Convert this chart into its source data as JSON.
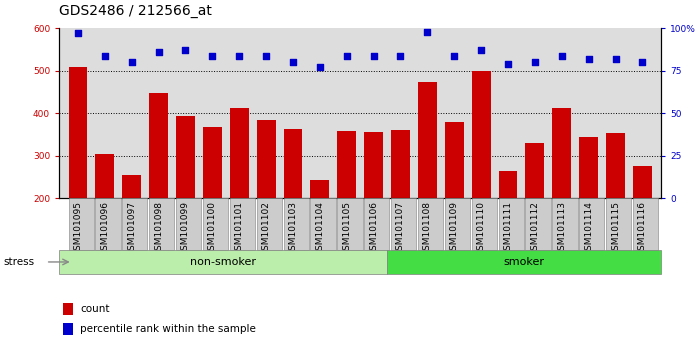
{
  "title": "GDS2486 / 212566_at",
  "categories": [
    "GSM101095",
    "GSM101096",
    "GSM101097",
    "GSM101098",
    "GSM101099",
    "GSM101100",
    "GSM101101",
    "GSM101102",
    "GSM101103",
    "GSM101104",
    "GSM101105",
    "GSM101106",
    "GSM101107",
    "GSM101108",
    "GSM101109",
    "GSM101110",
    "GSM101111",
    "GSM101112",
    "GSM101113",
    "GSM101114",
    "GSM101115",
    "GSM101116"
  ],
  "bar_values": [
    510,
    305,
    255,
    448,
    393,
    368,
    413,
    385,
    362,
    242,
    358,
    355,
    360,
    474,
    380,
    500,
    265,
    330,
    412,
    345,
    353,
    277
  ],
  "percentile_values": [
    97,
    84,
    80,
    86,
    87,
    84,
    84,
    84,
    80,
    77,
    84,
    84,
    84,
    98,
    84,
    87,
    79,
    80,
    84,
    82,
    82,
    80
  ],
  "bar_color": "#cc0000",
  "dot_color": "#0000cc",
  "ylim_left": [
    200,
    600
  ],
  "ylim_right": [
    0,
    100
  ],
  "yticks_left": [
    200,
    300,
    400,
    500,
    600
  ],
  "yticks_right": [
    0,
    25,
    50,
    75,
    100
  ],
  "yticklabels_right": [
    "0",
    "25",
    "50",
    "75",
    "100%"
  ],
  "grid_values": [
    300,
    400,
    500
  ],
  "non_smoker_count": 12,
  "smoker_count": 10,
  "non_smoker_color": "#bbeeaa",
  "smoker_color": "#44dd44",
  "xtick_bg_color": "#cccccc",
  "plot_bg_color": "#dddddd",
  "stress_label": "stress",
  "non_smoker_label": "non-smoker",
  "smoker_label": "smoker",
  "legend_count_label": "count",
  "legend_pct_label": "percentile rank within the sample",
  "title_fontsize": 10,
  "tick_fontsize": 6.5,
  "group_label_fontsize": 8,
  "legend_fontsize": 7.5
}
